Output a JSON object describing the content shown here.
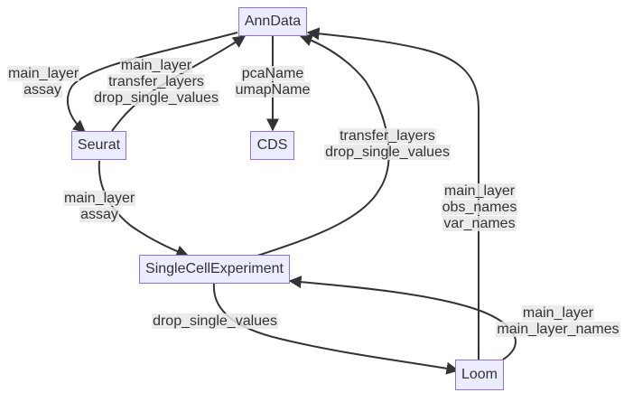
{
  "diagram": {
    "type": "flowchart",
    "colors": {
      "node_fill": "#ececff",
      "node_border": "#9370db",
      "edge": "#333333",
      "label_bg": "#e8e8e8",
      "text": "#333333"
    },
    "nodes": {
      "anndata": "AnnData",
      "seurat": "Seurat",
      "cds": "CDS",
      "sce": "SingleCellExperiment",
      "loom": "Loom"
    },
    "edges": {
      "anndata_to_seurat": {
        "from": "AnnData",
        "to": "Seurat",
        "label": [
          "main_layer",
          "assay"
        ]
      },
      "seurat_to_anndata": {
        "from": "Seurat",
        "to": "AnnData",
        "label": [
          "main_layer",
          "transfer_layers",
          "drop_single_values"
        ]
      },
      "anndata_to_cds": {
        "from": "AnnData",
        "to": "CDS",
        "label": [
          "pcaName",
          "umapName"
        ]
      },
      "seurat_to_sce": {
        "from": "Seurat",
        "to": "SingleCellExperiment",
        "label": [
          "main_layer",
          "assay"
        ]
      },
      "sce_to_anndata": {
        "from": "SingleCellExperiment",
        "to": "AnnData",
        "label": [
          "transfer_layers",
          "drop_single_values"
        ]
      },
      "loom_to_anndata": {
        "from": "Loom",
        "to": "AnnData",
        "label": [
          "main_layer",
          "obs_names",
          "var_names"
        ]
      },
      "sce_to_loom": {
        "from": "SingleCellExperiment",
        "to": "Loom",
        "label": [
          "drop_single_values"
        ]
      },
      "loom_to_sce": {
        "from": "Loom",
        "to": "SingleCellExperiment",
        "label": [
          "main_layer",
          "main_layer_names"
        ]
      }
    }
  }
}
